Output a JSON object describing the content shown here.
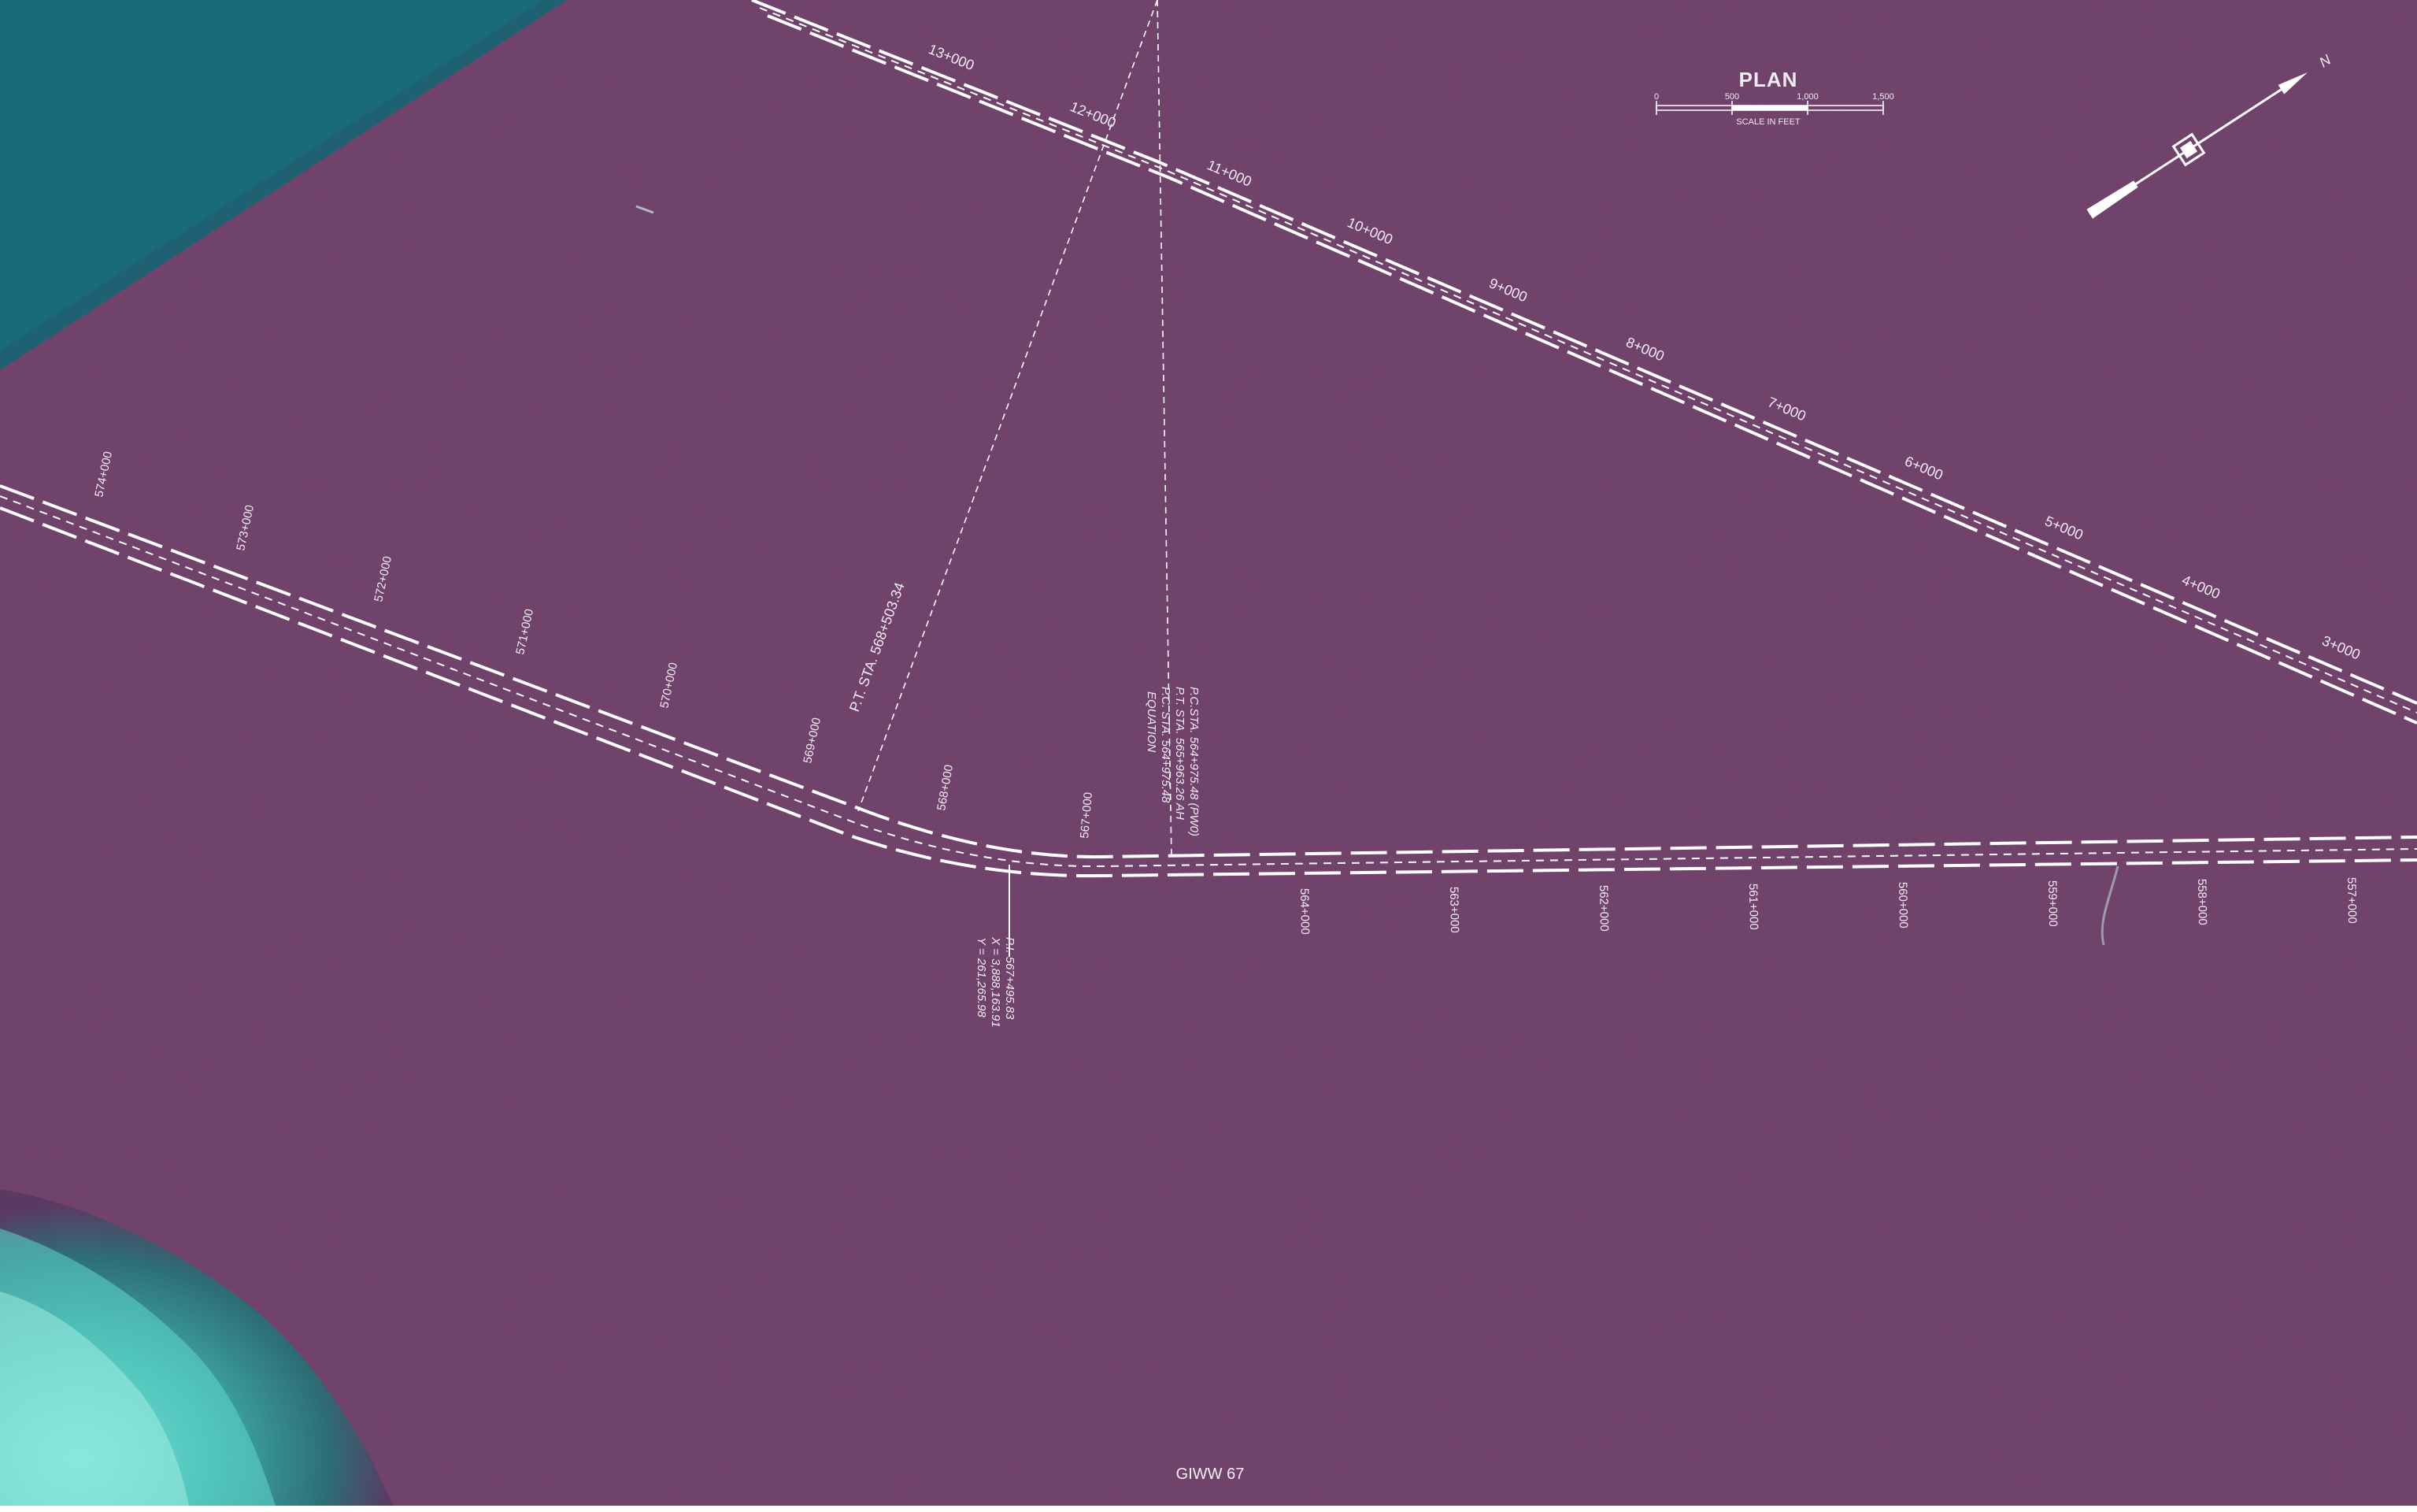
{
  "sheet": {
    "title": "GIWW 67"
  },
  "colors": {
    "water": "#6a3a63",
    "water_dark": "#5e3259",
    "land_teal": "#1a6b78",
    "reef_cyan": "#5fd8cc",
    "line_white": "#ffffff"
  },
  "plan": {
    "title": "PLAN",
    "scale_labels": [
      "0",
      "500",
      "1,000",
      "1,500"
    ],
    "scale_caption": "SCALE IN FEET",
    "north_label": "N"
  },
  "upper_alignment": {
    "stations": [
      "13+000",
      "12+000",
      "11+000",
      "10+000",
      "9+000",
      "8+000",
      "7+000",
      "6+000",
      "5+000",
      "4+000",
      "3+000"
    ]
  },
  "lower_alignment": {
    "stations_west": [
      "574+000",
      "573+000",
      "572+000",
      "571+000",
      "570+000",
      "569+000",
      "568+000",
      "567+000"
    ],
    "stations_east": [
      "564+000",
      "563+000",
      "562+000",
      "561+000",
      "560+000",
      "559+000",
      "558+000",
      "557+000"
    ]
  },
  "annotations": {
    "pt_station": "P.T. STA. 568+503.34",
    "equation_line1": "EQUATION",
    "equation_line2": "P.C. STA. 564+975.48",
    "equation_line3": "P.T. STA. 565+963.26 AH",
    "equation_line4": "P.C.STA. 564+975.48 (PW0)",
    "pi_line1": "P.I. 567+495.83",
    "pi_line2": "X = 3,888,163.91",
    "pi_line3": "Y = 261,265.98"
  }
}
